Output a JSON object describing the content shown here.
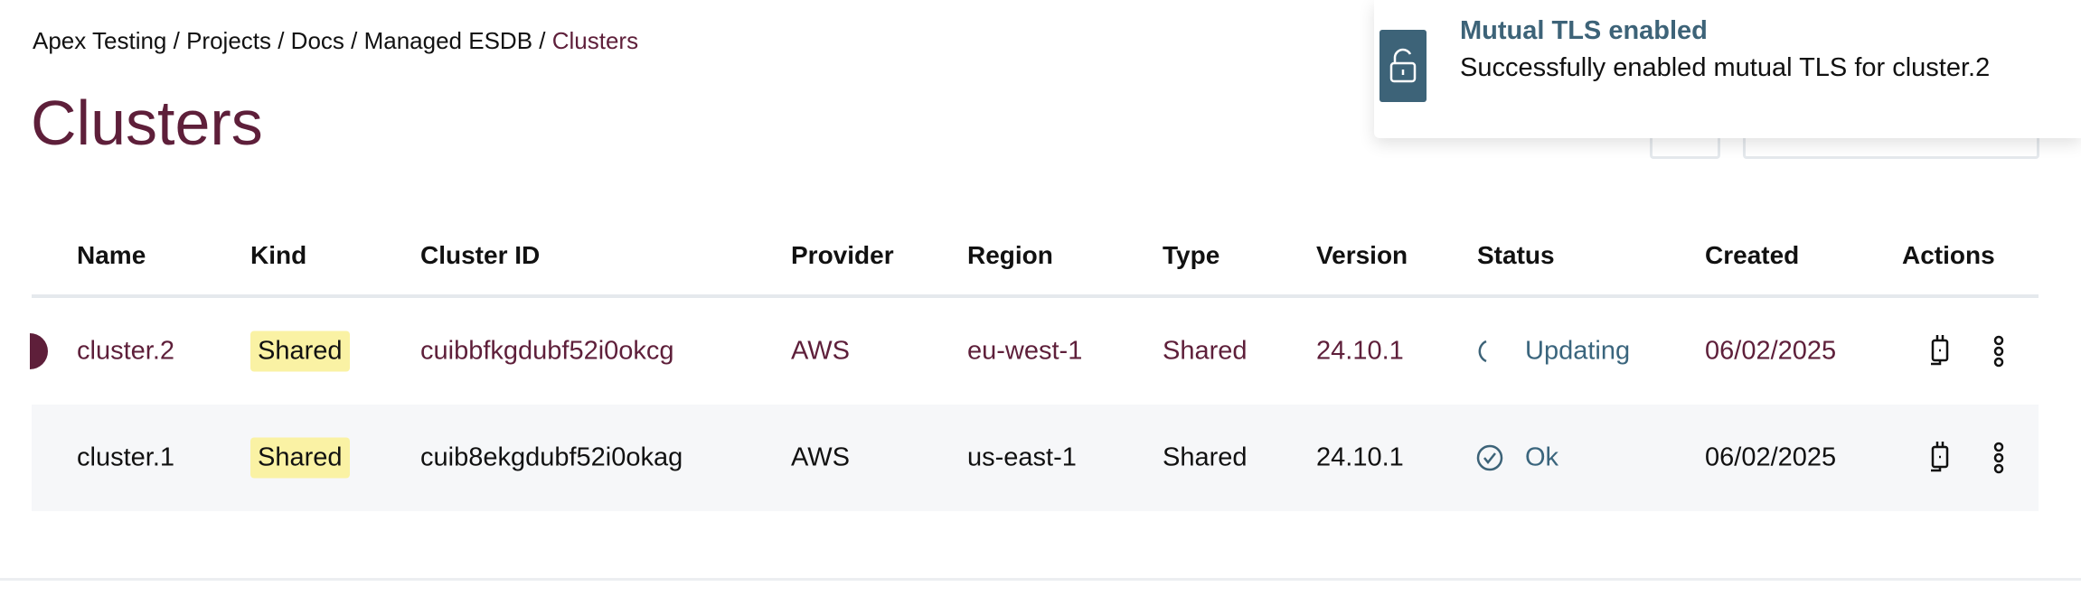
{
  "breadcrumb": {
    "items": [
      "Apex Testing",
      "Projects",
      "Docs",
      "Managed ESDB"
    ],
    "current": "Clusters",
    "separator": " / "
  },
  "page_title": "Clusters",
  "table": {
    "columns": [
      "Name",
      "Kind",
      "Cluster ID",
      "Provider",
      "Region",
      "Type",
      "Version",
      "Status",
      "Created",
      "Actions"
    ],
    "rows": [
      {
        "name": "cluster.2",
        "kind": "Shared",
        "cluster_id": "cuibbfkgdubf52i0okcg",
        "provider": "AWS",
        "region": "eu-west-1",
        "type": "Shared",
        "version": "24.10.1",
        "status": "Updating",
        "status_icon": "spinner-icon",
        "created": "06/02/2025",
        "selected": true
      },
      {
        "name": "cluster.1",
        "kind": "Shared",
        "cluster_id": "cuib8ekgdubf52i0okag",
        "provider": "AWS",
        "region": "us-east-1",
        "type": "Shared",
        "version": "24.10.1",
        "status": "Ok",
        "status_icon": "check-circle-icon",
        "created": "06/02/2025",
        "selected": false
      }
    ]
  },
  "toast": {
    "title": "Mutual TLS enabled",
    "message": "Successfully enabled mutual TLS for cluster.2",
    "icon": "unlock-icon"
  },
  "colors": {
    "brand": "#5e1f3a",
    "status": "#3d6378",
    "badge": "#faf2a4"
  }
}
